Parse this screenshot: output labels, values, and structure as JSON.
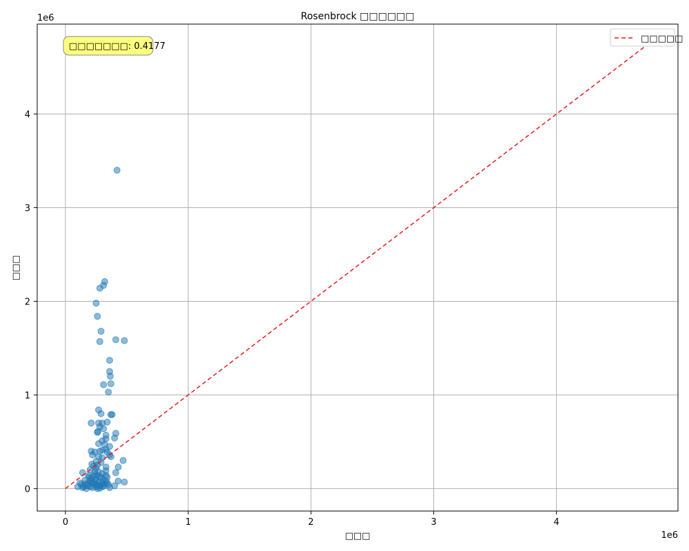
{
  "chart_data": {
    "type": "scatter",
    "title": "Rosenbrock □□□□□□",
    "xlabel": "□□□",
    "ylabel": "□□□",
    "x_scale_label": "1e6",
    "y_scale_label": "1e6",
    "xlim": [
      -230000,
      4990000
    ],
    "ylim": [
      -240000,
      4960000
    ],
    "x_ticks": [
      0,
      1,
      2,
      3,
      4
    ],
    "y_ticks": [
      0,
      1,
      2,
      3,
      4
    ],
    "tick_multiplier": 1000000,
    "grid": true,
    "legend": {
      "position": "top-right",
      "entries": [
        {
          "label": "□□□□□",
          "style": "dashed",
          "color": "#e41a1c"
        }
      ]
    },
    "annotation": {
      "text": "□□□□□□□: 0.4177",
      "position": "top-left",
      "background": "#ffff80"
    },
    "reference_line": {
      "from": [
        0,
        0
      ],
      "to": [
        4720000,
        4720000
      ],
      "color": "#e41a1c"
    },
    "point_color": "#1f77b4",
    "points": [
      [
        420000,
        3400000
      ],
      [
        320000,
        2210000
      ],
      [
        310000,
        2170000
      ],
      [
        280000,
        2140000
      ],
      [
        250000,
        1980000
      ],
      [
        260000,
        1840000
      ],
      [
        290000,
        1680000
      ],
      [
        280000,
        1570000
      ],
      [
        410000,
        1590000
      ],
      [
        480000,
        1580000
      ],
      [
        360000,
        1370000
      ],
      [
        360000,
        1250000
      ],
      [
        365000,
        1200000
      ],
      [
        370000,
        1120000
      ],
      [
        310000,
        1110000
      ],
      [
        350000,
        1030000
      ],
      [
        270000,
        840000
      ],
      [
        290000,
        800000
      ],
      [
        370000,
        790000
      ],
      [
        380000,
        790000
      ],
      [
        210000,
        700000
      ],
      [
        270000,
        700000
      ],
      [
        300000,
        700000
      ],
      [
        340000,
        710000
      ],
      [
        280000,
        660000
      ],
      [
        310000,
        640000
      ],
      [
        260000,
        600000
      ],
      [
        265000,
        610000
      ],
      [
        410000,
        590000
      ],
      [
        330000,
        570000
      ],
      [
        400000,
        540000
      ],
      [
        330000,
        530000
      ],
      [
        300000,
        510000
      ],
      [
        270000,
        480000
      ],
      [
        320000,
        470000
      ],
      [
        360000,
        450000
      ],
      [
        300000,
        410000
      ],
      [
        280000,
        400000
      ],
      [
        210000,
        400000
      ],
      [
        240000,
        390000
      ],
      [
        330000,
        420000
      ],
      [
        340000,
        390000
      ],
      [
        360000,
        360000
      ],
      [
        220000,
        360000
      ],
      [
        270000,
        340000
      ],
      [
        300000,
        330000
      ],
      [
        370000,
        340000
      ],
      [
        470000,
        300000
      ],
      [
        250000,
        290000
      ],
      [
        290000,
        280000
      ],
      [
        215000,
        260000
      ],
      [
        230000,
        240000
      ],
      [
        260000,
        250000
      ],
      [
        250000,
        220000
      ],
      [
        330000,
        230000
      ],
      [
        330000,
        190000
      ],
      [
        430000,
        230000
      ],
      [
        410000,
        170000
      ],
      [
        140000,
        170000
      ],
      [
        270000,
        180000
      ],
      [
        190000,
        140000
      ],
      [
        300000,
        160000
      ],
      [
        240000,
        150000
      ],
      [
        330000,
        140000
      ],
      [
        340000,
        120000
      ],
      [
        280000,
        120000
      ],
      [
        210000,
        110000
      ],
      [
        250000,
        100000
      ],
      [
        310000,
        90000
      ],
      [
        430000,
        80000
      ],
      [
        480000,
        70000
      ],
      [
        160000,
        90000
      ],
      [
        200000,
        80000
      ],
      [
        270000,
        70000
      ],
      [
        340000,
        60000
      ],
      [
        120000,
        60000
      ],
      [
        180000,
        50000
      ],
      [
        230000,
        50000
      ],
      [
        290000,
        40000
      ],
      [
        350000,
        40000
      ],
      [
        400000,
        30000
      ],
      [
        100000,
        20000
      ],
      [
        150000,
        20000
      ],
      [
        200000,
        20000
      ],
      [
        250000,
        20000
      ],
      [
        300000,
        20000
      ],
      [
        140000,
        10000
      ],
      [
        220000,
        10000
      ],
      [
        280000,
        5000
      ],
      [
        360000,
        10000
      ],
      [
        170000,
        0
      ],
      [
        260000,
        0
      ],
      [
        190000,
        120000
      ],
      [
        230000,
        130000
      ],
      [
        260000,
        140000
      ],
      [
        210000,
        90000
      ],
      [
        240000,
        70000
      ],
      [
        300000,
        60000
      ],
      [
        320000,
        50000
      ],
      [
        180000,
        30000
      ],
      [
        130000,
        40000
      ],
      [
        270000,
        30000
      ],
      [
        330000,
        80000
      ],
      [
        200000,
        200000
      ],
      [
        240000,
        180000
      ],
      [
        290000,
        120000
      ],
      [
        220000,
        60000
      ],
      [
        160000,
        50000
      ],
      [
        250000,
        45000
      ],
      [
        310000,
        25000
      ]
    ]
  }
}
